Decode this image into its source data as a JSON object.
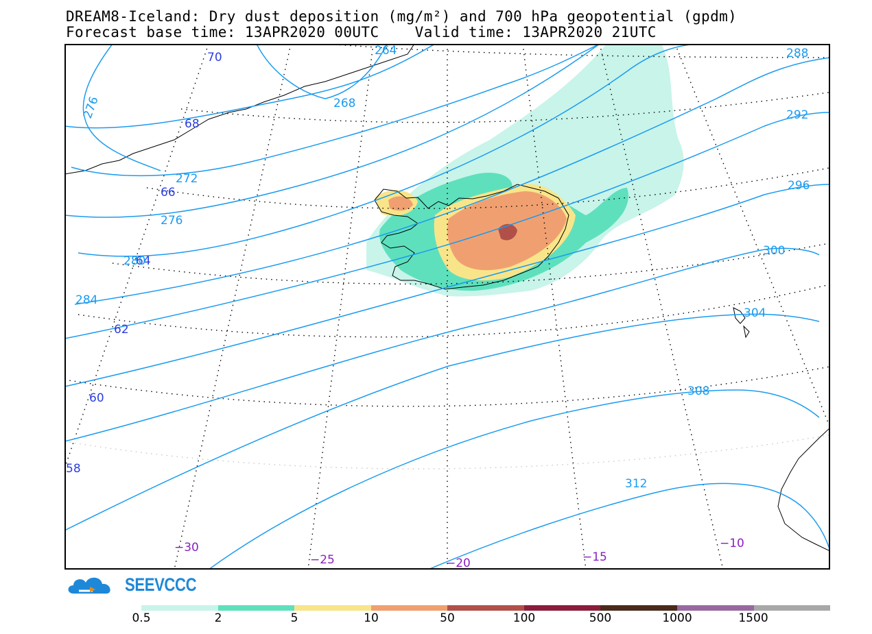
{
  "header": {
    "title": "DREAM8-Iceland: Dry dust deposition (mg/m²) and 700 hPa geopotential (gpdm)",
    "subtitle": "Forecast base time: 13APR2020 00UTC    Valid time: 13APR2020 21UTC"
  },
  "contour_labels": [
    "264",
    "268",
    "272",
    "276",
    "276",
    "280",
    "284",
    "288",
    "292",
    "296",
    "300",
    "304",
    "308",
    "312"
  ],
  "lat_labels": [
    "70",
    "68",
    "66",
    "64",
    "62",
    "60",
    "58"
  ],
  "lon_labels": [
    "−30",
    "−25",
    "−20",
    "−15",
    "−10"
  ],
  "logo": {
    "text": "SEEVCCC"
  },
  "colorbar": {
    "labels": [
      "0.5",
      "2",
      "5",
      "10",
      "50",
      "100",
      "500",
      "1000",
      "1500"
    ],
    "colors": [
      "#c8f4ea",
      "#5ee0bd",
      "#f8e58a",
      "#f0a070",
      "#b05048",
      "#8a1e3a",
      "#4a2a1a",
      "#9a68a0",
      "#a8a8a8"
    ]
  },
  "colors": {
    "contour": "#1a9bef",
    "lat_label": "#2b3ee0",
    "lon_label": "#8a20c0",
    "dust_lightest": "#c8f4ea",
    "dust_light": "#5ee0bd",
    "dust_yellow": "#f8e58a",
    "dust_orange": "#f0a070",
    "dust_dark": "#b05048"
  }
}
